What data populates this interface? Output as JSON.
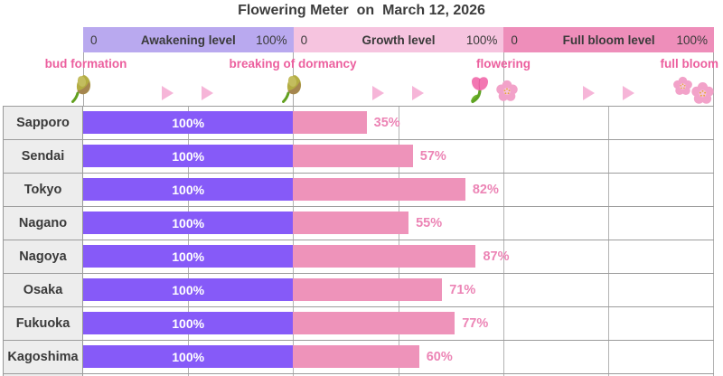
{
  "title": "Flowering Meter  on  March 12, 2026",
  "scale_header": {
    "sections": [
      {
        "label": "Awakening level",
        "min": "0",
        "max": "100%"
      },
      {
        "label": "Growth level",
        "min": "0",
        "max": "100%"
      },
      {
        "label": "Full bloom level",
        "min": "0",
        "max": "100%"
      }
    ]
  },
  "stages": {
    "labels": [
      "bud formation",
      "breaking of dormancy",
      "flowering",
      "full bloom"
    ],
    "icons": [
      "flower-bud-icon",
      "right-arrow-icon",
      "tulip-icon",
      "cherry-blossom-icon"
    ]
  },
  "colors": {
    "awakening_band": "#b9a9ef",
    "growth_band": "#f6c4df",
    "full_bloom_band": "#ee8eba",
    "awakening_bar": "#865af8",
    "growth_bar": "#ee93ba",
    "growth_text": "#ec84b5",
    "stage_text": "#ec5f9e",
    "title_text": "#3c3c3c"
  },
  "rows": [
    {
      "city": "Sapporo",
      "awakening": 100,
      "awakening_text": "100%",
      "growth": 35,
      "growth_text": "35%"
    },
    {
      "city": "Sendai",
      "awakening": 100,
      "awakening_text": "100%",
      "growth": 57,
      "growth_text": "57%"
    },
    {
      "city": "Tokyo",
      "awakening": 100,
      "awakening_text": "100%",
      "growth": 82,
      "growth_text": "82%"
    },
    {
      "city": "Nagano",
      "awakening": 100,
      "awakening_text": "100%",
      "growth": 55,
      "growth_text": "55%"
    },
    {
      "city": "Nagoya",
      "awakening": 100,
      "awakening_text": "100%",
      "growth": 87,
      "growth_text": "87%"
    },
    {
      "city": "Osaka",
      "awakening": 100,
      "awakening_text": "100%",
      "growth": 71,
      "growth_text": "71%"
    },
    {
      "city": "Fukuoka",
      "awakening": 100,
      "awakening_text": "100%",
      "growth": 77,
      "growth_text": "77%"
    },
    {
      "city": "Kagoshima",
      "awakening": 100,
      "awakening_text": "100%",
      "growth": 60,
      "growth_text": "60%"
    }
  ],
  "chart_data": {
    "type": "bar",
    "orientation": "horizontal",
    "title": "Flowering Meter  on  March 12, 2026",
    "categories": [
      "Sapporo",
      "Sendai",
      "Tokyo",
      "Nagano",
      "Nagoya",
      "Osaka",
      "Fukuoka",
      "Kagoshima"
    ],
    "series": [
      {
        "name": "Awakening level",
        "unit": "%",
        "xlim": [
          0,
          100
        ],
        "values": [
          100,
          100,
          100,
          100,
          100,
          100,
          100,
          100
        ]
      },
      {
        "name": "Growth level",
        "unit": "%",
        "xlim": [
          0,
          100
        ],
        "values": [
          35,
          57,
          82,
          55,
          87,
          71,
          77,
          60
        ]
      },
      {
        "name": "Full bloom level",
        "unit": "%",
        "xlim": [
          0,
          100
        ],
        "values": [
          0,
          0,
          0,
          0,
          0,
          0,
          0,
          0
        ]
      }
    ],
    "stage_markers": [
      "bud formation",
      "breaking of dormancy",
      "flowering",
      "full bloom"
    ],
    "grid": true,
    "legend_position": "top"
  }
}
